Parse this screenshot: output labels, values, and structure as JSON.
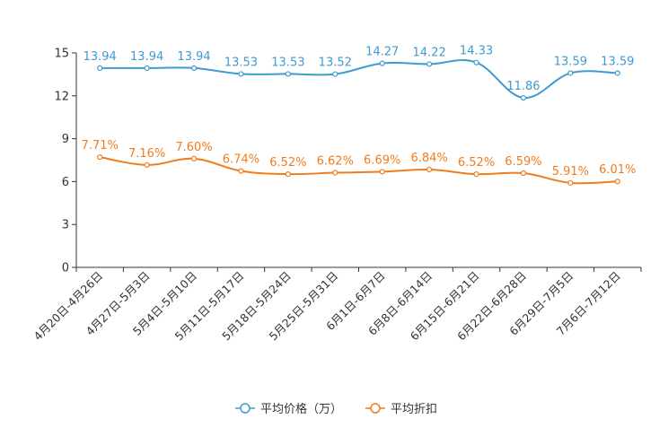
{
  "chart_data": {
    "type": "line",
    "title": "",
    "xlabel": "",
    "ylabel": "",
    "ylim": [
      0,
      15
    ],
    "yticks": [
      0,
      3,
      6,
      9,
      12,
      15
    ],
    "grid": false,
    "legend_position": "bottom-center",
    "categories": [
      "4月20日-4月26日",
      "4月27日-5月3日",
      "5月4日-5月10日",
      "5月11日-5月17日",
      "5月18日-5月24日",
      "5月25日-5月31日",
      "6月1日-6月7日",
      "6月8日-6月14日",
      "6月15日-6月21日",
      "6月22日-6月28日",
      "6月29日-7月5日",
      "7月6日-7月12日"
    ],
    "series": [
      {
        "name": "平均价格（万）",
        "color": "#3d9bd1",
        "values": [
          13.94,
          13.94,
          13.94,
          13.53,
          13.53,
          13.52,
          14.27,
          14.22,
          14.33,
          11.86,
          13.59,
          13.59
        ],
        "labels": [
          "13.94",
          "13.94",
          "13.94",
          "13.53",
          "13.53",
          "13.52",
          "14.27",
          "14.22",
          "14.33",
          "11.86",
          "13.59",
          "13.59"
        ]
      },
      {
        "name": "平均折扣",
        "color": "#f07c1c",
        "values": [
          7.71,
          7.16,
          7.6,
          6.74,
          6.52,
          6.62,
          6.69,
          6.84,
          6.52,
          6.59,
          5.91,
          6.01
        ],
        "labels": [
          "7.71%",
          "7.16%",
          "7.60%",
          "6.74%",
          "6.52%",
          "6.62%",
          "6.69%",
          "6.84%",
          "6.52%",
          "6.59%",
          "5.91%",
          "6.01%"
        ]
      }
    ]
  }
}
